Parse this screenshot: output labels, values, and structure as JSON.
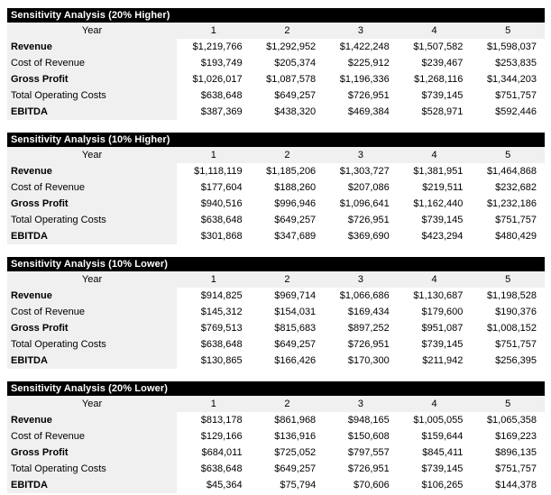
{
  "colors": {
    "title_bar_bg": "#000000",
    "title_bar_text": "#ffffff",
    "band_bg": "#f0f0f0",
    "data_bg": "#ffffff",
    "text": "#000000"
  },
  "tables": [
    {
      "title": "Sensitivity Analysis (20% Higher)",
      "year_label": "Year",
      "year_columns": [
        "1",
        "2",
        "3",
        "4",
        "5"
      ],
      "rows": [
        {
          "label": "Revenue",
          "bold": true,
          "values": [
            "$1,219,766",
            "$1,292,952",
            "$1,422,248",
            "$1,507,582",
            "$1,598,037"
          ]
        },
        {
          "label": "Cost of Revenue",
          "bold": false,
          "values": [
            "$193,749",
            "$205,374",
            "$225,912",
            "$239,467",
            "$253,835"
          ]
        },
        {
          "label": "Gross Profit",
          "bold": true,
          "values": [
            "$1,026,017",
            "$1,087,578",
            "$1,196,336",
            "$1,268,116",
            "$1,344,203"
          ]
        },
        {
          "label": "Total Operating Costs",
          "bold": false,
          "values": [
            "$638,648",
            "$649,257",
            "$726,951",
            "$739,145",
            "$751,757"
          ]
        },
        {
          "label": "EBITDA",
          "bold": true,
          "values": [
            "$387,369",
            "$438,320",
            "$469,384",
            "$528,971",
            "$592,446"
          ]
        }
      ]
    },
    {
      "title": "Sensitivity Analysis (10% Higher)",
      "year_label": "Year",
      "year_columns": [
        "1",
        "2",
        "3",
        "4",
        "5"
      ],
      "rows": [
        {
          "label": "Revenue",
          "bold": true,
          "values": [
            "$1,118,119",
            "$1,185,206",
            "$1,303,727",
            "$1,381,951",
            "$1,464,868"
          ]
        },
        {
          "label": "Cost of Revenue",
          "bold": false,
          "values": [
            "$177,604",
            "$188,260",
            "$207,086",
            "$219,511",
            "$232,682"
          ]
        },
        {
          "label": "Gross Profit",
          "bold": true,
          "values": [
            "$940,516",
            "$996,946",
            "$1,096,641",
            "$1,162,440",
            "$1,232,186"
          ]
        },
        {
          "label": "Total Operating Costs",
          "bold": false,
          "values": [
            "$638,648",
            "$649,257",
            "$726,951",
            "$739,145",
            "$751,757"
          ]
        },
        {
          "label": "EBITDA",
          "bold": true,
          "values": [
            "$301,868",
            "$347,689",
            "$369,690",
            "$423,294",
            "$480,429"
          ]
        }
      ]
    },
    {
      "title": "Sensitivity Analysis (10% Lower)",
      "year_label": "Year",
      "year_columns": [
        "1",
        "2",
        "3",
        "4",
        "5"
      ],
      "rows": [
        {
          "label": "Revenue",
          "bold": true,
          "values": [
            "$914,825",
            "$969,714",
            "$1,066,686",
            "$1,130,687",
            "$1,198,528"
          ]
        },
        {
          "label": "Cost of Revenue",
          "bold": false,
          "values": [
            "$145,312",
            "$154,031",
            "$169,434",
            "$179,600",
            "$190,376"
          ]
        },
        {
          "label": "Gross Profit",
          "bold": true,
          "values": [
            "$769,513",
            "$815,683",
            "$897,252",
            "$951,087",
            "$1,008,152"
          ]
        },
        {
          "label": "Total Operating Costs",
          "bold": false,
          "values": [
            "$638,648",
            "$649,257",
            "$726,951",
            "$739,145",
            "$751,757"
          ]
        },
        {
          "label": "EBITDA",
          "bold": true,
          "values": [
            "$130,865",
            "$166,426",
            "$170,300",
            "$211,942",
            "$256,395"
          ]
        }
      ]
    },
    {
      "title": "Sensitivity Analysis (20% Lower)",
      "year_label": "Year",
      "year_columns": [
        "1",
        "2",
        "3",
        "4",
        "5"
      ],
      "rows": [
        {
          "label": "Revenue",
          "bold": true,
          "values": [
            "$813,178",
            "$861,968",
            "$948,165",
            "$1,005,055",
            "$1,065,358"
          ]
        },
        {
          "label": "Cost of Revenue",
          "bold": false,
          "values": [
            "$129,166",
            "$136,916",
            "$150,608",
            "$159,644",
            "$169,223"
          ]
        },
        {
          "label": "Gross Profit",
          "bold": true,
          "values": [
            "$684,011",
            "$725,052",
            "$797,557",
            "$845,411",
            "$896,135"
          ]
        },
        {
          "label": "Total Operating Costs",
          "bold": false,
          "values": [
            "$638,648",
            "$649,257",
            "$726,951",
            "$739,145",
            "$751,757"
          ]
        },
        {
          "label": "EBITDA",
          "bold": true,
          "values": [
            "$45,364",
            "$75,794",
            "$70,606",
            "$106,265",
            "$144,378"
          ]
        }
      ]
    }
  ]
}
